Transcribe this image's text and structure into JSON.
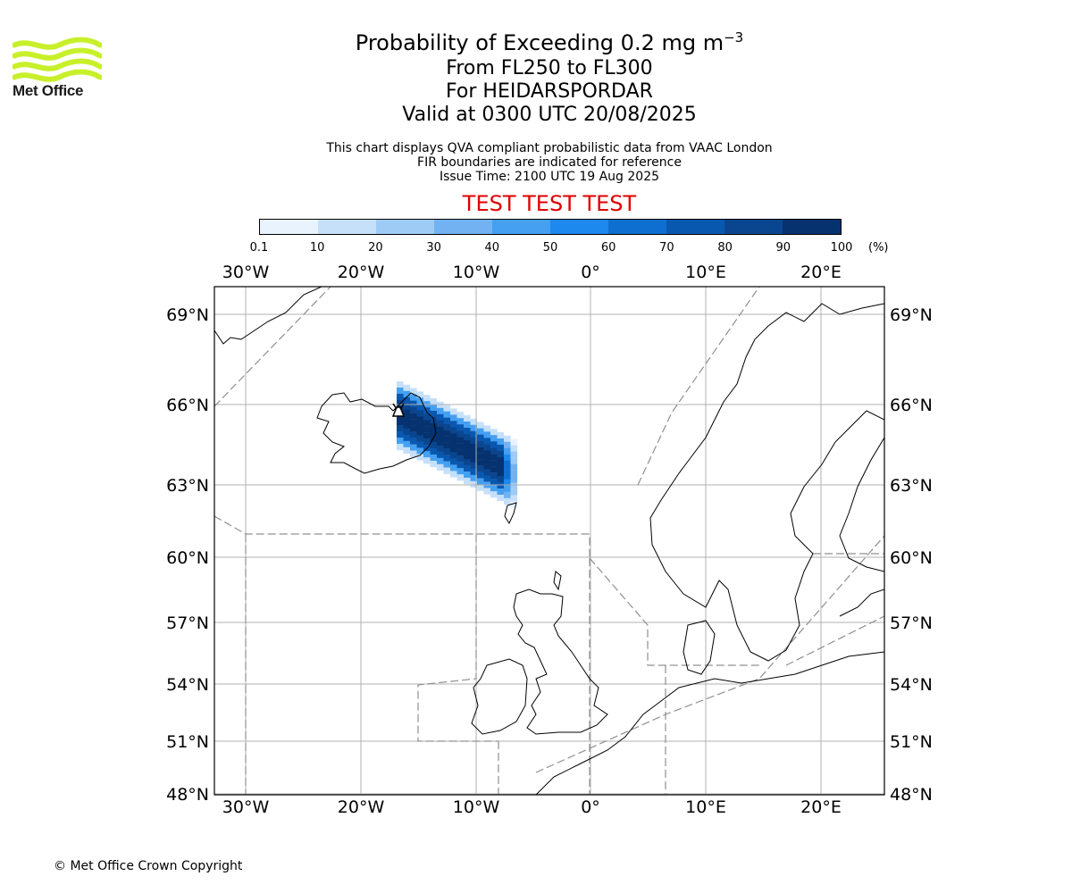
{
  "logo": {
    "text": "Met Office",
    "color": "#c8f02a"
  },
  "header": {
    "title": "Probability of Exceeding 0.2 mg m",
    "title_sup": "−3",
    "line2": "From FL250 to FL300",
    "line3": "For HEIDARSPORDAR",
    "line4": "Valid at 0300 UTC 20/08/2025",
    "note1": "This chart displays QVA compliant probabilistic data from VAAC London",
    "note2": "FIR boundaries are indicated for reference",
    "note3": "Issue Time: 2100 UTC 19 Aug 2025",
    "test_banner": "TEST TEST TEST"
  },
  "colorbar": {
    "ticks": [
      "0.1",
      "10",
      "20",
      "30",
      "40",
      "50",
      "60",
      "70",
      "80",
      "90",
      "100"
    ],
    "units": "(%)",
    "colors": [
      "#e9f3fd",
      "#c6e0fa",
      "#9ecbf6",
      "#72b2f2",
      "#45a0f2",
      "#1d88ee",
      "#0e6fd0",
      "#0958b0",
      "#0a4690",
      "#063270"
    ]
  },
  "map": {
    "lon_labels": [
      "30°W",
      "20°W",
      "10°W",
      "0°",
      "10°E",
      "20°E"
    ],
    "lat_labels": [
      "69°N",
      "66°N",
      "63°N",
      "60°N",
      "57°N",
      "54°N",
      "51°N",
      "48°N"
    ],
    "grid_color": "#b0b0b0",
    "coast_color": "#000000",
    "fir_color": "#909090"
  },
  "footer": {
    "copyright": "© Met Office Crown Copyright"
  }
}
